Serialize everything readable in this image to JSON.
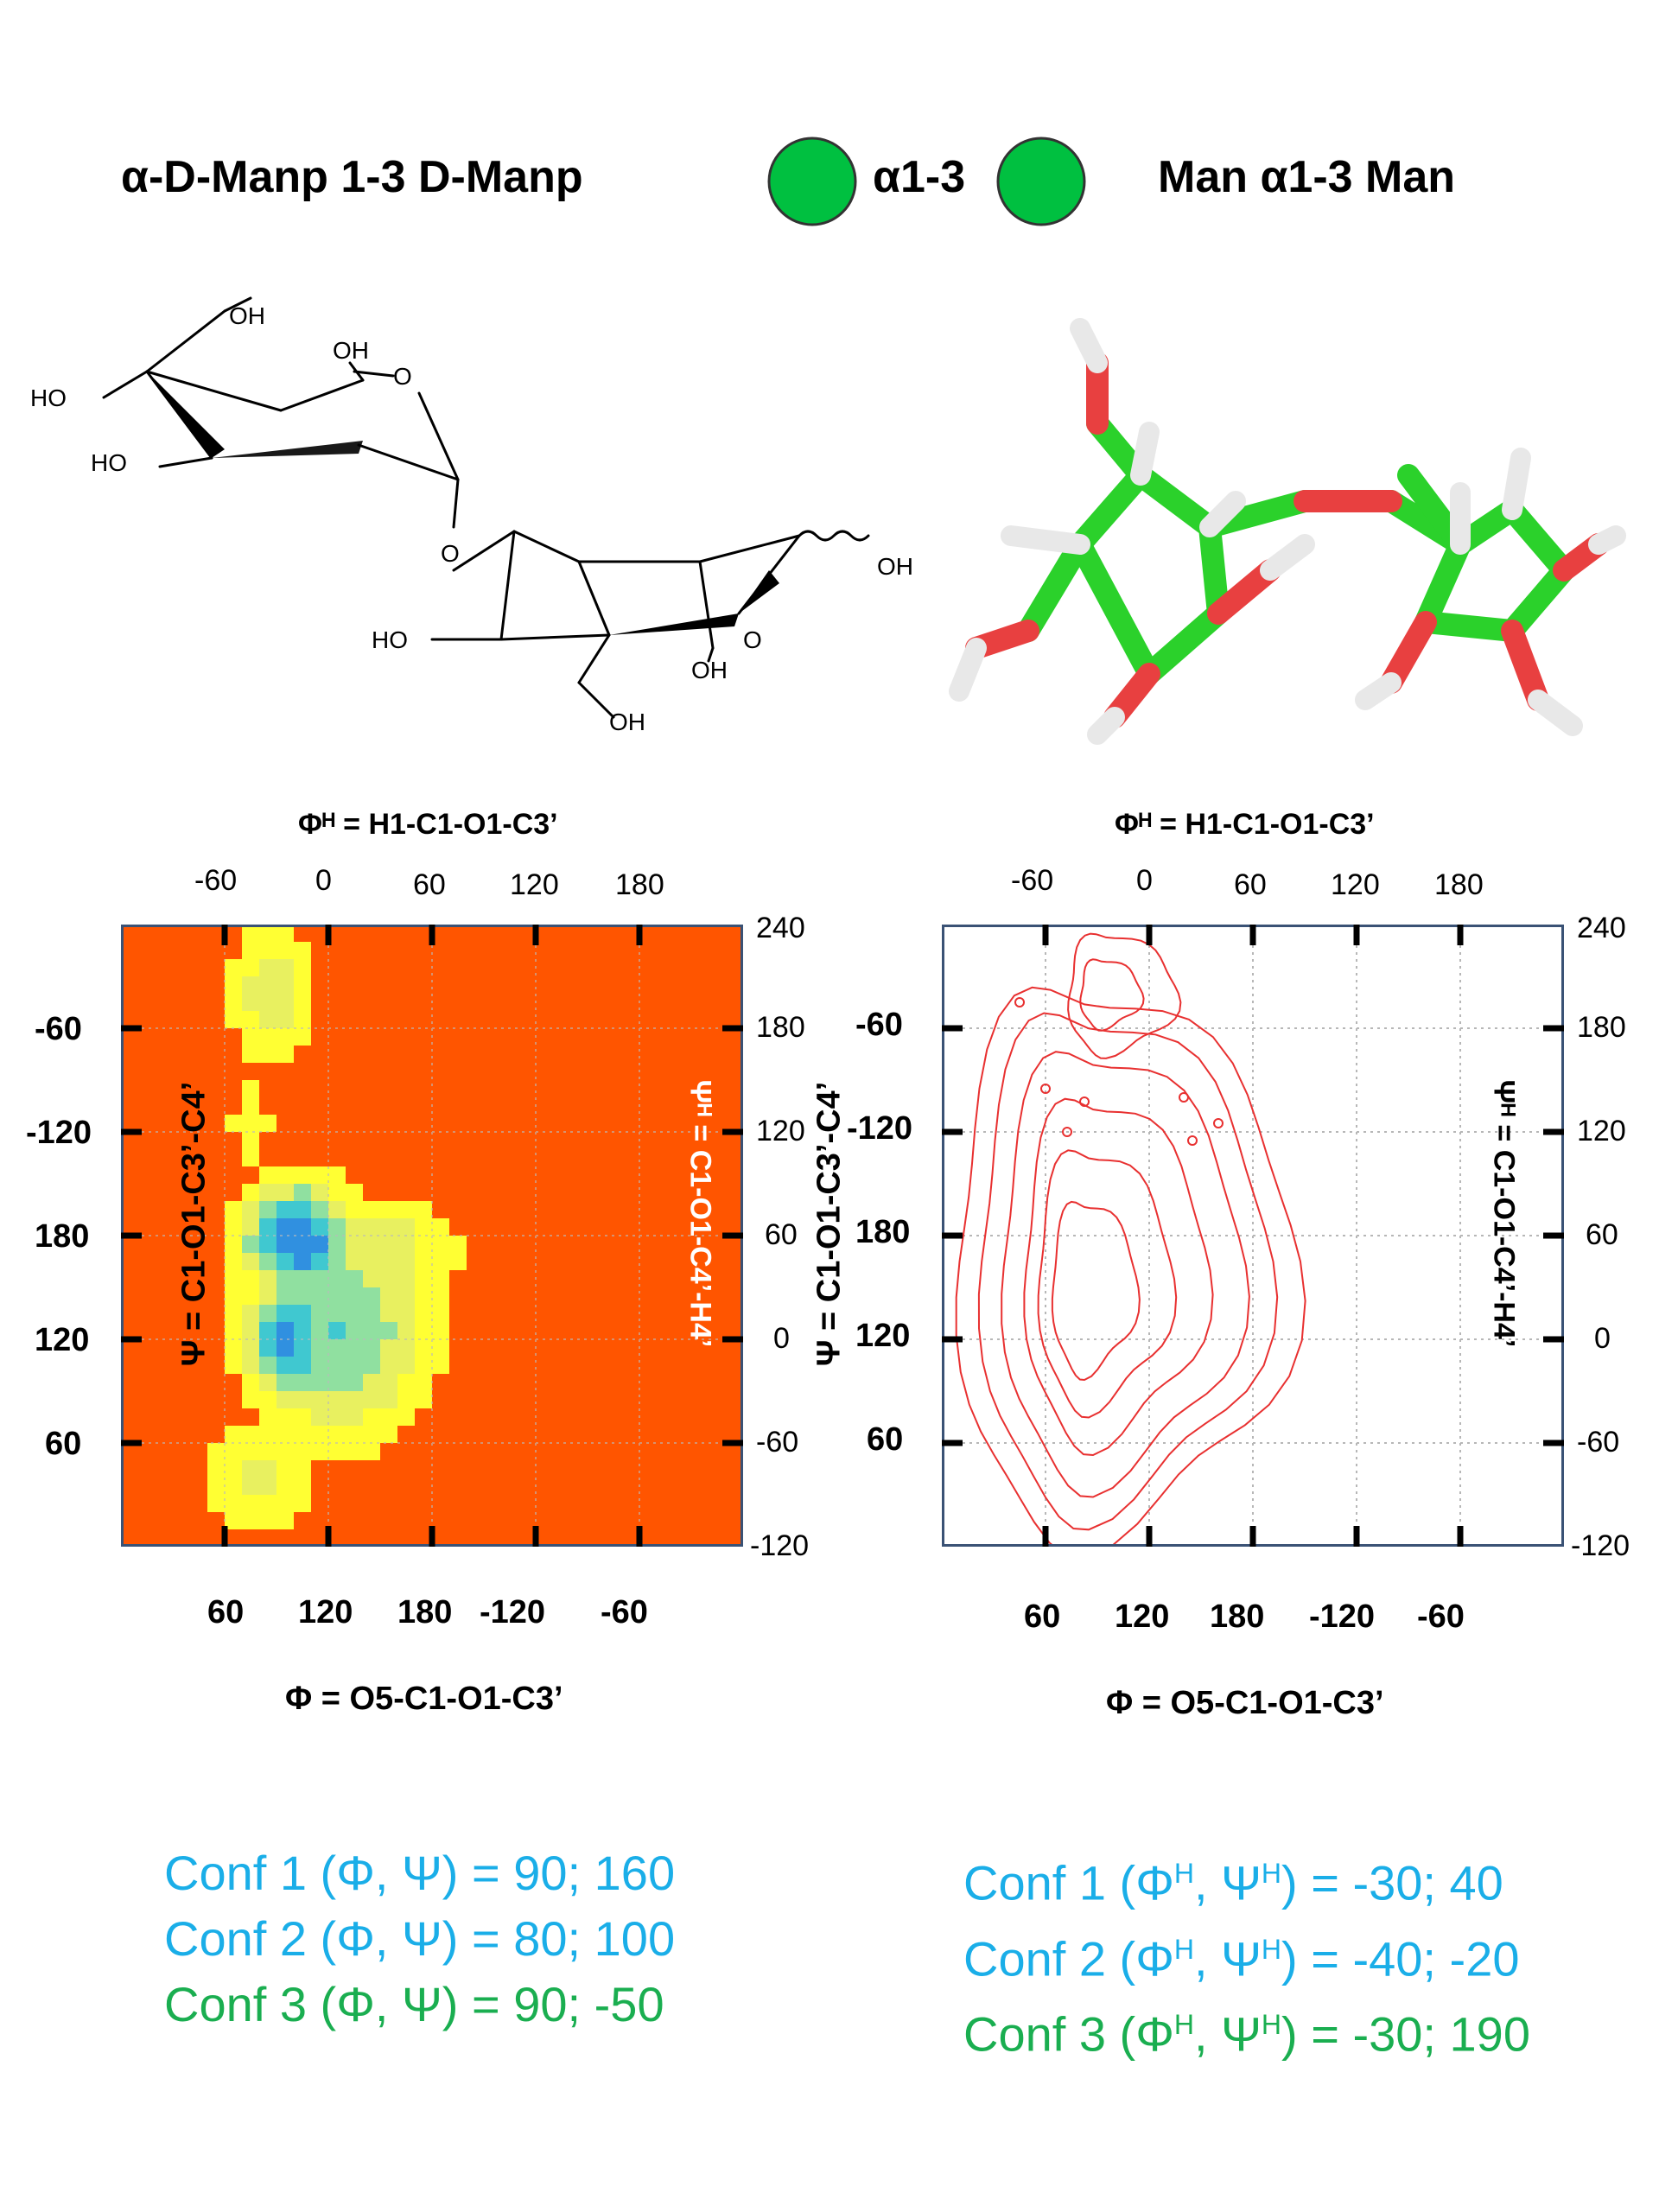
{
  "header": {
    "left_title": "α-D-Manp 1-3 D-Manp",
    "linkage_label": "α1-3",
    "right_title": "Man α1-3 Man",
    "residue_color": "#00c040"
  },
  "structure_2d": {
    "labels": [
      "OH",
      "OH",
      "HO",
      "HO",
      "O",
      "O",
      "HO",
      "OH",
      "O",
      "OH",
      "OH"
    ]
  },
  "plots": [
    {
      "kind": "heatmap",
      "top_axis_title": "Φᴴ = H1-C1-O1-C3’",
      "top_ticks": [
        "-60",
        "0",
        "60",
        "120",
        "180"
      ],
      "bottom_ticks": [
        "60",
        "120",
        "180",
        "-120",
        "-60"
      ],
      "bottom_axis_title": "Φ = O5-C1-O1-C3’",
      "left_ticks": [
        "-60",
        "-120",
        "180",
        "120",
        "60"
      ],
      "left_axis_title": "Ψ = C1-O1-C3’-C4’",
      "right_ticks": [
        "240",
        "180",
        "120",
        "60",
        "0",
        "-60",
        "-120"
      ],
      "right_axis_title": "Ψᴴ = C1-O1-C4’-H4’",
      "background_color": "#ff5500"
    },
    {
      "kind": "contour",
      "top_axis_title": "Φᴴ = H1-C1-O1-C3’",
      "top_ticks": [
        "-60",
        "0",
        "60",
        "120",
        "180"
      ],
      "bottom_ticks": [
        "60",
        "120",
        "180",
        "-120",
        "-60"
      ],
      "bottom_axis_title": "Φ = O5-C1-O1-C3’",
      "left_ticks": [
        "-60",
        "-120",
        "180",
        "120",
        "60"
      ],
      "left_axis_title": "Ψ = C1-O1-C3’-C4’",
      "right_ticks": [
        "240",
        "180",
        "120",
        "60",
        "0",
        "-60",
        "-120"
      ],
      "right_axis_title": "Ψᴴ = C1-O1-C4’-H4’",
      "contour_color": "#e83030"
    }
  ],
  "conformations_left": [
    {
      "label": "Conf 1 (Φ, Ψ) =  90; 160",
      "color": "#1aaee8"
    },
    {
      "label": "Conf 2 (Φ, Ψ) =  80; 100",
      "color": "#1aaee8"
    },
    {
      "label": "Conf 3 (Φ, Ψ) =  90; -50",
      "color": "#1aae50"
    }
  ],
  "conformations_right": [
    {
      "pre": "Conf 1 (Φ",
      "sup1": "H",
      "mid": ", Ψ",
      "sup2": "H",
      "post": ") = -30; 40",
      "color": "#1aaee8"
    },
    {
      "pre": "Conf 2 (Φ",
      "sup1": "H",
      "mid": ", Ψ",
      "sup2": "H",
      "post": ") = -40; -20",
      "color": "#1aaee8"
    },
    {
      "pre": "Conf 3 (Φ",
      "sup1": "H",
      "mid": ", Ψ",
      "sup2": "H",
      "post": ") = -30; 190",
      "color": "#1aae50"
    }
  ]
}
